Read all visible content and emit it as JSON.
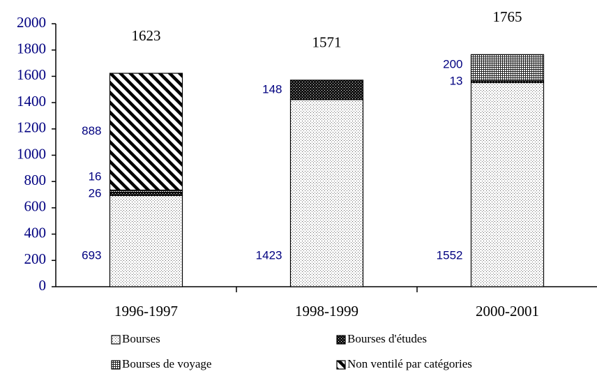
{
  "chart_data": {
    "type": "stacked_bar",
    "categories": [
      "1996-1997",
      "1998-1999",
      "2000-2001"
    ],
    "series": [
      {
        "name": "Bourses",
        "values": [
          693,
          1423,
          1552
        ]
      },
      {
        "name": "Bourses d'études",
        "values": [
          26,
          148,
          13
        ]
      },
      {
        "name": "Bourses de voyage",
        "values": [
          16,
          null,
          200
        ]
      },
      {
        "name": "Non ventilé par catégories",
        "values": [
          888,
          null,
          null
        ]
      }
    ],
    "totals": [
      1623,
      1571,
      1765
    ],
    "ylim": [
      0,
      2000
    ],
    "yticks": [
      0,
      200,
      400,
      600,
      800,
      1000,
      1200,
      1400,
      1600,
      1800,
      2000
    ],
    "grid": false
  }
}
